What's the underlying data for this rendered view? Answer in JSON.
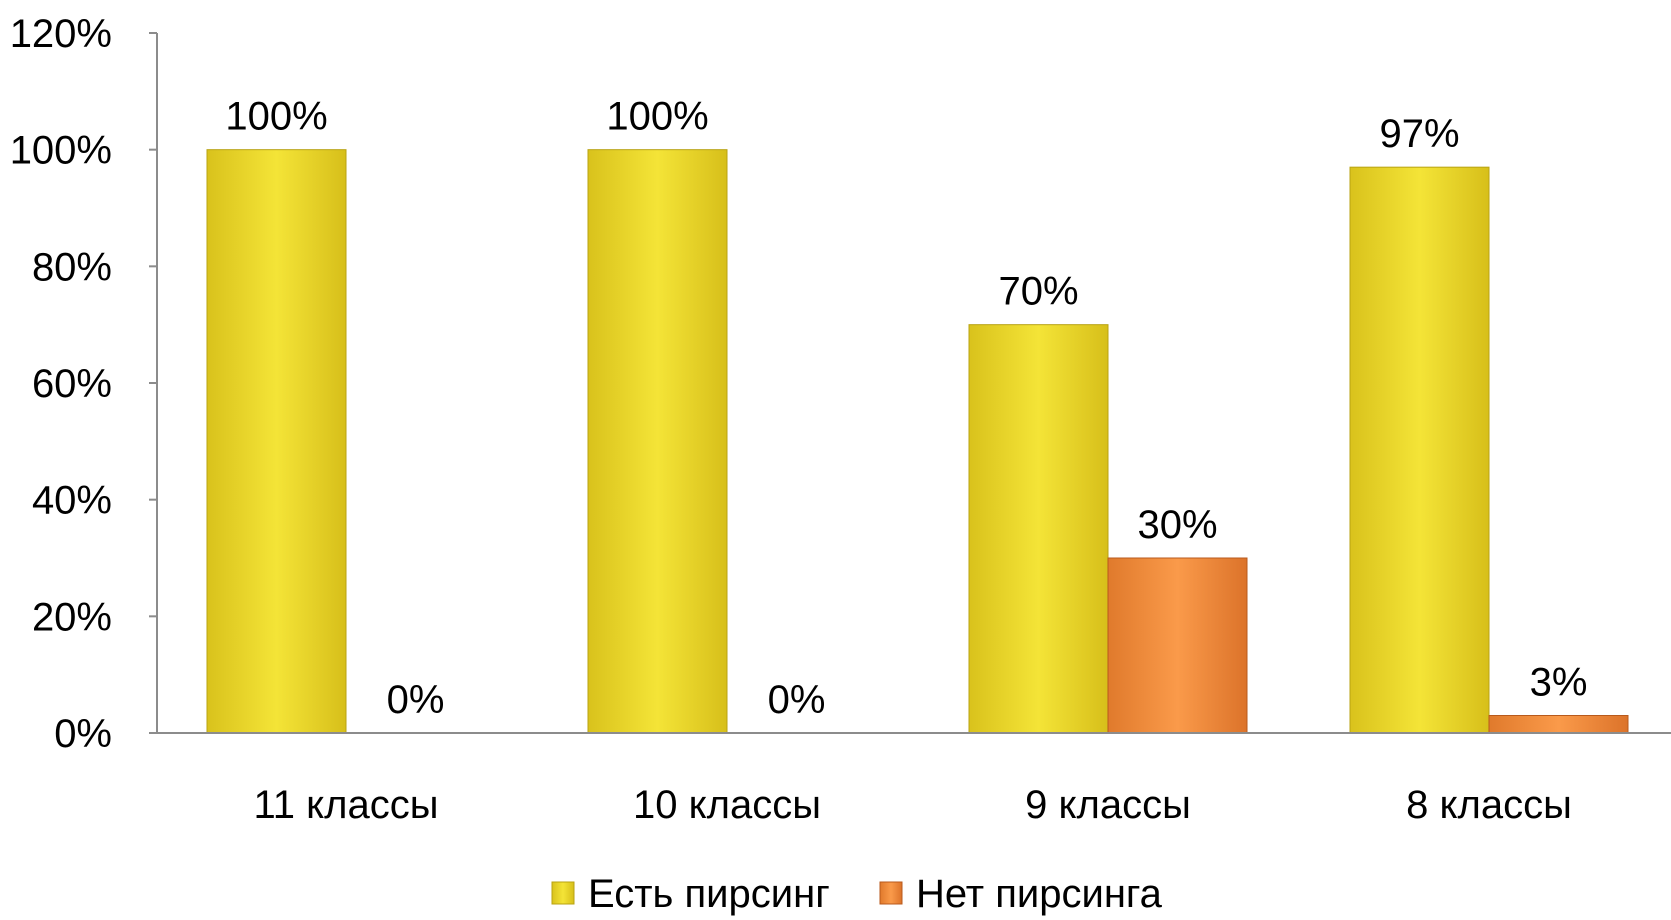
{
  "chart_data": {
    "type": "bar",
    "categories": [
      "11 классы",
      "10 классы",
      "9 классы",
      "8 классы"
    ],
    "series": [
      {
        "name": "Есть пирсинг",
        "values": [
          100,
          100,
          70,
          97
        ],
        "data_labels": [
          "100%",
          "100%",
          "70%",
          "97%"
        ],
        "color": "#e8d22a"
      },
      {
        "name": "Нет пирсинга",
        "values": [
          0,
          0,
          30,
          3
        ],
        "data_labels": [
          "0%",
          "0%",
          "30%",
          "3%"
        ],
        "color": "#f08a3c"
      }
    ],
    "ylim": [
      0,
      120
    ],
    "yticks": [
      0,
      20,
      40,
      60,
      80,
      100,
      120
    ],
    "ytick_labels": [
      "0%",
      "20%",
      "40%",
      "60%",
      "80%",
      "100%",
      "120%"
    ],
    "grid": false,
    "legend": "bottom"
  }
}
